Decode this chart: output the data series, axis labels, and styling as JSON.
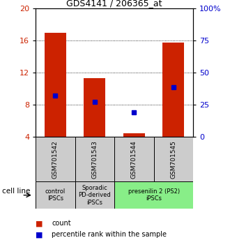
{
  "title": "GDS4141 / 206365_at",
  "samples": [
    "GSM701542",
    "GSM701543",
    "GSM701544",
    "GSM701545"
  ],
  "bar_bottoms": [
    4,
    4,
    4,
    4
  ],
  "bar_tops": [
    17.0,
    11.3,
    4.5,
    15.8
  ],
  "blue_dots": [
    9.2,
    8.4,
    7.1,
    10.2
  ],
  "ylim": [
    4,
    20
  ],
  "yticks_left": [
    4,
    8,
    12,
    16,
    20
  ],
  "yticks_right": [
    0,
    25,
    50,
    75,
    100
  ],
  "bar_color": "#cc2200",
  "dot_color": "#0000cc",
  "grid_color": "#000000",
  "bar_width": 0.55,
  "cell_line_groups": [
    {
      "label": "control\nIPSCs",
      "samples": [
        0
      ],
      "color": "#cccccc"
    },
    {
      "label": "Sporadic\nPD-derived\niPSCs",
      "samples": [
        1
      ],
      "color": "#cccccc"
    },
    {
      "label": "presenilin 2 (PS2)\niPSCs",
      "samples": [
        2,
        3
      ],
      "color": "#88ee88"
    }
  ],
  "xlabel_cell_line": "cell line",
  "legend_count_label": "count",
  "legend_percentile_label": "percentile rank within the sample",
  "tick_label_color_left": "#cc2200",
  "tick_label_color_right": "#0000cc"
}
